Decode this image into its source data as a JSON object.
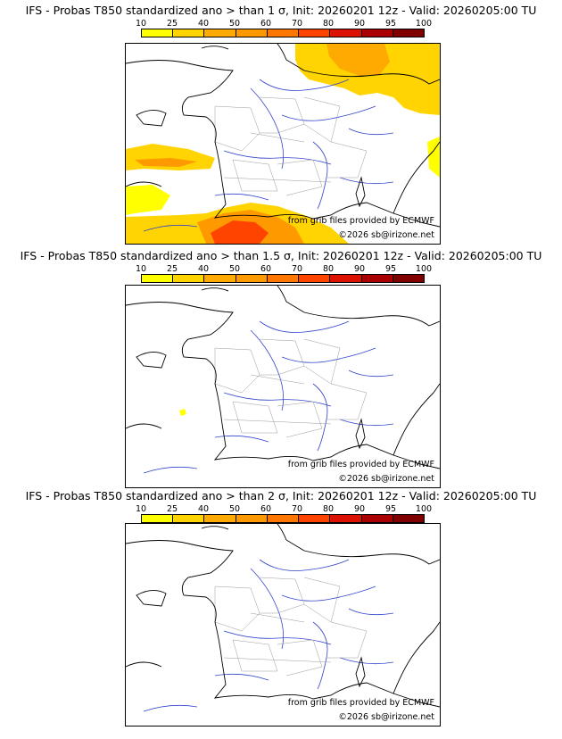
{
  "legend": {
    "labels": [
      "10",
      "25",
      "40",
      "50",
      "60",
      "70",
      "80",
      "90",
      "95",
      "100"
    ],
    "colors": [
      "#ffff00",
      "#ffd400",
      "#ffaa00",
      "#ff9900",
      "#ff7700",
      "#ff4400",
      "#dd1100",
      "#aa0000",
      "#800000"
    ]
  },
  "panels": [
    {
      "title": "IFS - Probas T850  standardized ano > than 1 σ, Init: 20260201 12z - Valid: 20260205:00 TU",
      "source": "from grib files provided by ECMWF",
      "copyright": "©2026 sb@irizone.net"
    },
    {
      "title": "IFS - Probas T850  standardized ano > than 1.5 σ, Init: 20260201 12z - Valid: 20260205:00 TU",
      "source": "from grib files provided by ECMWF",
      "copyright": "©2026 sb@irizone.net"
    },
    {
      "title": "IFS - Probas T850  standardized ano > than 2 σ, Init: 20260201 12z - Valid: 20260205:00 TU",
      "source": "from grib files provided by ECMWF",
      "copyright": "©2026 sb@irizone.net"
    }
  ],
  "colors": {
    "coast": "#000000",
    "borders": "#999999",
    "rivers": "#3344cc"
  }
}
